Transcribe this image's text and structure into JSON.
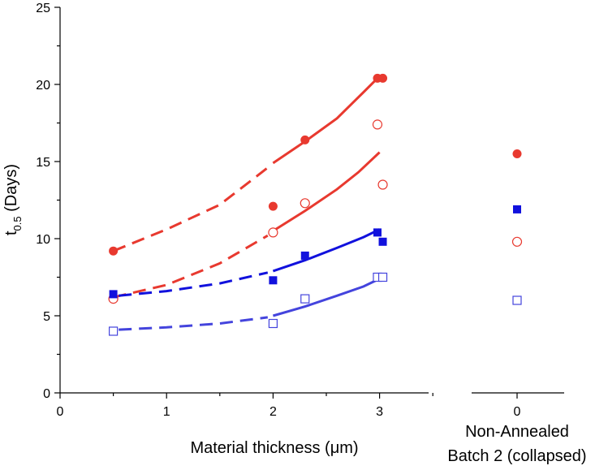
{
  "chart_data": {
    "type": "scatter",
    "title": "",
    "xlabel": "Material thickness (μm)",
    "ylabel_main": "t",
    "ylabel_sub": "0.5",
    "ylabel_suffix": " (Days)",
    "xlim": [
      0,
      3.5
    ],
    "ylim": [
      0,
      25
    ],
    "xticks": [
      "0",
      "1",
      "2",
      "3"
    ],
    "yticks": [
      "0",
      "5",
      "10",
      "15",
      "20",
      "25"
    ],
    "side_panel": {
      "tick_label": "0",
      "label_line1": "Non-Annealed",
      "label_line2": "Batch 2 (collapsed)"
    },
    "series": [
      {
        "name": "red-filled-circles",
        "marker": "circle",
        "filled": true,
        "color": "#e8392f",
        "x": [
          0.5,
          2.0,
          2.3,
          2.98,
          3.03
        ],
        "y": [
          9.2,
          12.1,
          16.4,
          20.4,
          20.4
        ],
        "side_value": 15.5,
        "fit_dashed": [
          [
            0.5,
            9.2
          ],
          [
            1.0,
            10.6
          ],
          [
            1.5,
            12.2
          ],
          [
            1.95,
            14.6
          ]
        ],
        "fit_solid": [
          [
            2.0,
            14.9
          ],
          [
            2.3,
            16.3
          ],
          [
            2.6,
            17.8
          ],
          [
            2.85,
            19.5
          ],
          [
            2.98,
            20.4
          ],
          [
            3.03,
            20.4
          ]
        ]
      },
      {
        "name": "red-open-circles",
        "marker": "circle",
        "filled": false,
        "color": "#e8392f",
        "x": [
          0.5,
          2.0,
          2.3,
          2.98,
          3.03
        ],
        "y": [
          6.1,
          10.4,
          12.3,
          17.4,
          13.5
        ],
        "side_value": 9.8,
        "fit_dashed": [
          [
            0.5,
            6.2
          ],
          [
            1.0,
            7.0
          ],
          [
            1.5,
            8.4
          ],
          [
            1.95,
            10.2
          ]
        ],
        "fit_solid": [
          [
            2.0,
            10.5
          ],
          [
            2.3,
            11.8
          ],
          [
            2.6,
            13.2
          ],
          [
            2.8,
            14.3
          ],
          [
            3.0,
            15.6
          ]
        ]
      },
      {
        "name": "blue-filled-squares",
        "marker": "square",
        "filled": true,
        "color": "#1111dd",
        "x": [
          0.5,
          2.0,
          2.3,
          2.98,
          3.03
        ],
        "y": [
          6.4,
          7.3,
          8.9,
          10.4,
          9.8
        ],
        "side_value": 11.9,
        "fit_dashed": [
          [
            0.55,
            6.3
          ],
          [
            1.0,
            6.6
          ],
          [
            1.5,
            7.1
          ],
          [
            1.95,
            7.8
          ]
        ],
        "fit_solid": [
          [
            2.0,
            7.9
          ],
          [
            2.3,
            8.6
          ],
          [
            2.6,
            9.4
          ],
          [
            2.85,
            10.1
          ],
          [
            3.0,
            10.6
          ]
        ]
      },
      {
        "name": "blue-open-squares",
        "marker": "square",
        "filled": false,
        "color": "#4444dd",
        "x": [
          0.5,
          2.0,
          2.3,
          2.98,
          3.03
        ],
        "y": [
          4.0,
          4.5,
          6.1,
          7.5,
          7.5
        ],
        "side_value": 6.0,
        "fit_dashed": [
          [
            0.55,
            4.1
          ],
          [
            1.0,
            4.25
          ],
          [
            1.5,
            4.5
          ],
          [
            1.95,
            4.9
          ]
        ],
        "fit_solid": [
          [
            2.0,
            5.0
          ],
          [
            2.3,
            5.6
          ],
          [
            2.6,
            6.3
          ],
          [
            2.85,
            6.9
          ],
          [
            3.0,
            7.4
          ]
        ]
      }
    ]
  }
}
